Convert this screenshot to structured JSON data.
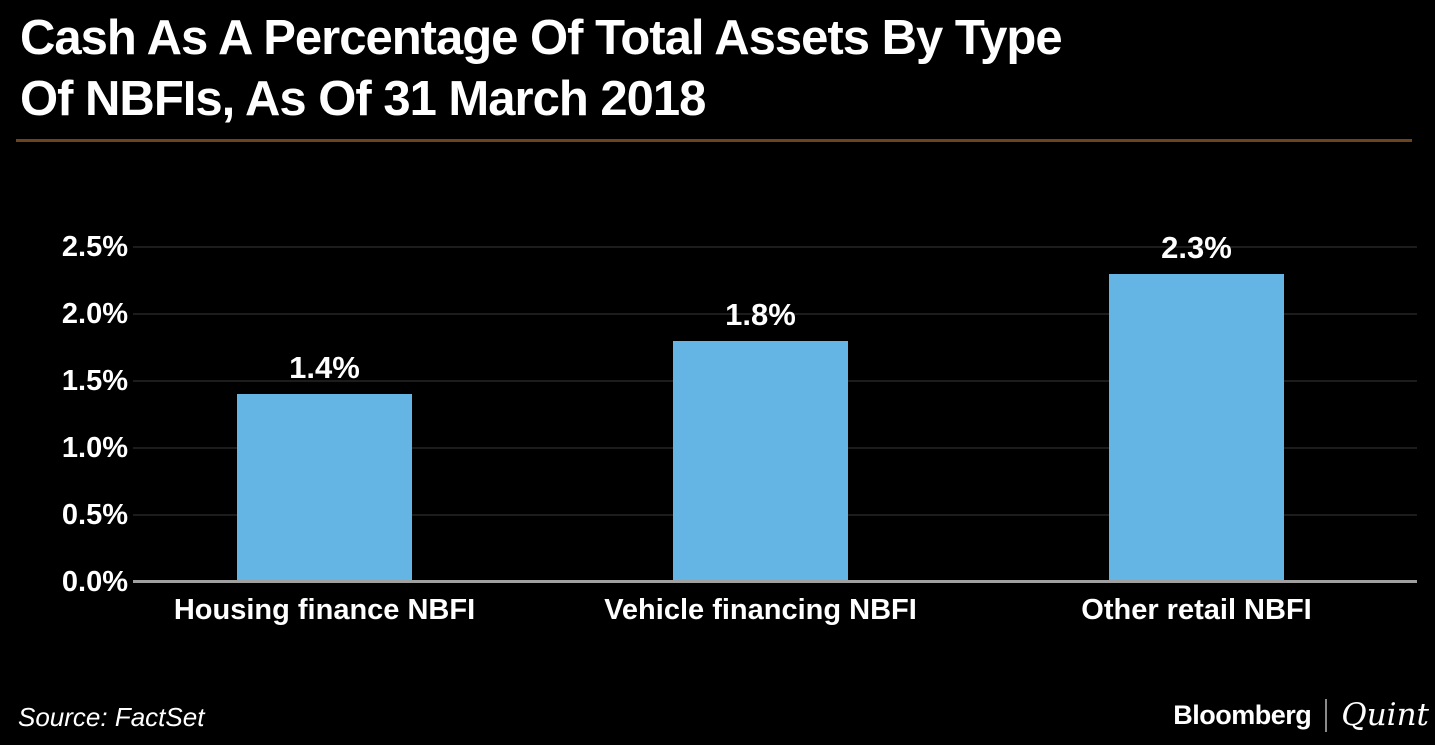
{
  "title": {
    "line1": "Cash As A Percentage Of Total Assets By Type",
    "line2": "Of NBFIs, As Of 31 March 2018"
  },
  "source_note": "Source: FactSet",
  "brand": {
    "bloomberg": "Bloomberg",
    "quint": "Quint"
  },
  "colors": {
    "background": "#000000",
    "title_text": "#ffffff",
    "accent_rule": "#6b4520",
    "bar_fill": "#64b5e4",
    "axis_line": "#a0a0a0",
    "gridline": "#1c1c1c"
  },
  "chart_data": {
    "type": "bar",
    "title": "Cash As A Percentage Of Total Assets By Type Of NBFIs, As Of 31 March 2018",
    "categories": [
      "Housing finance NBFI",
      "Vehicle financing NBFI",
      "Other retail NBFI"
    ],
    "values": [
      1.4,
      1.8,
      2.3
    ],
    "value_labels": [
      "1.4%",
      "1.8%",
      "2.3%"
    ],
    "unit": "%",
    "xlabel": "",
    "ylabel": "",
    "ylim": [
      0,
      2.5
    ],
    "yticks": [
      0,
      0.5,
      1.0,
      1.5,
      2.0,
      2.5
    ],
    "ytick_labels": [
      "0.0%",
      "0.5%",
      "1.0%",
      "1.5%",
      "2.0%",
      "2.5%"
    ],
    "grid": "horizontal faint gridlines on",
    "legend": "none",
    "bar_color": "#64b5e4",
    "source": "Source: FactSet"
  }
}
